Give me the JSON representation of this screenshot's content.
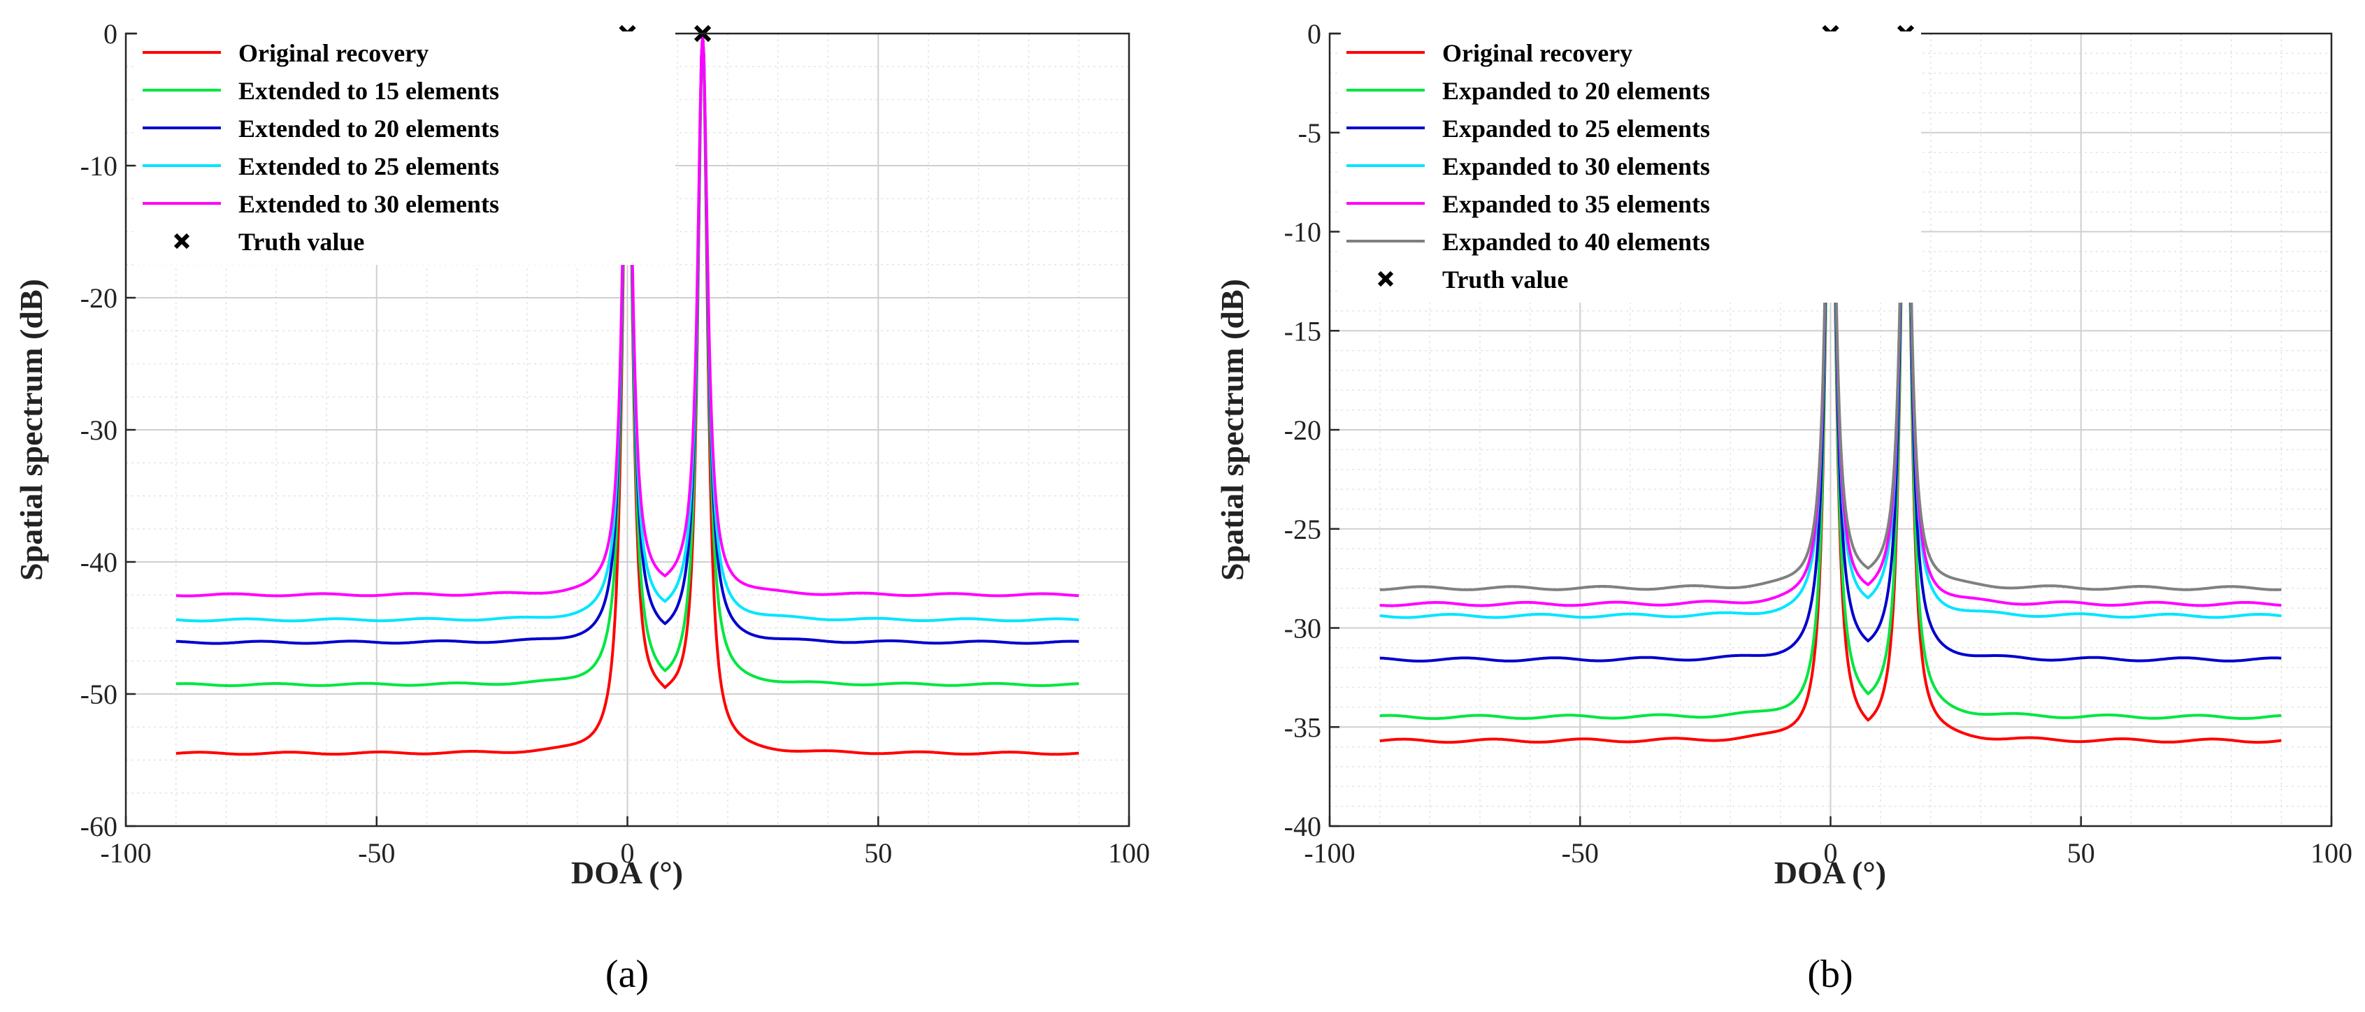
{
  "chart_data": [
    {
      "type": "line",
      "panel_label": "(a)",
      "xlabel": "DOA (°)",
      "ylabel": "Spatial spectrum (dB)",
      "xlim": [
        -100,
        100
      ],
      "ylim": [
        -60,
        0
      ],
      "xticks": [
        -100,
        -50,
        0,
        50,
        100
      ],
      "yticks": [
        -60,
        -50,
        -40,
        -30,
        -20,
        -10,
        0
      ],
      "grid": true,
      "minor_grid": true,
      "legend_position": "top-left",
      "peaks_deg": [
        0,
        15
      ],
      "series": [
        {
          "name": "Original recovery",
          "color": "#ff0000",
          "floor": -54.5,
          "dip": -51.5
        },
        {
          "name": "Extended to 15 elements",
          "color": "#00e640",
          "floor": -49.3,
          "dip": -49.4
        },
        {
          "name": "Extended to 20 elements",
          "color": "#0000cc",
          "floor": -46.1,
          "dip": -45.8
        },
        {
          "name": "Extended to 25 elements",
          "color": "#00e5ff",
          "floor": -44.4,
          "dip": -44.1
        },
        {
          "name": "Extended to 30 elements",
          "color": "#ff00ff",
          "floor": -42.5,
          "dip": -42.2
        }
      ],
      "truth": {
        "name": "Truth value",
        "x": [
          0,
          15
        ],
        "y": [
          0,
          0
        ]
      }
    },
    {
      "type": "line",
      "panel_label": "(b)",
      "xlabel": "DOA (°)",
      "ylabel": "Spatial spectrum (dB)",
      "xlim": [
        -100,
        100
      ],
      "ylim": [
        -40,
        0
      ],
      "xticks": [
        -100,
        -50,
        0,
        50,
        100
      ],
      "yticks": [
        -40,
        -35,
        -30,
        -25,
        -20,
        -15,
        -10,
        -5,
        0
      ],
      "grid": true,
      "minor_grid": true,
      "legend_position": "top-left",
      "peaks_deg": [
        0,
        15
      ],
      "series": [
        {
          "name": "Original recovery",
          "color": "#ff0000",
          "floor": -35.7,
          "dip": -35.6
        },
        {
          "name": "Expanded to 20 elements",
          "color": "#00e640",
          "floor": -34.5,
          "dip": -34.2
        },
        {
          "name": "Expanded to 25 elements",
          "color": "#0000cc",
          "floor": -31.6,
          "dip": -31.4
        },
        {
          "name": "Expanded to 30 elements",
          "color": "#00e5ff",
          "floor": -29.4,
          "dip": -29.2
        },
        {
          "name": "Expanded to 35 elements",
          "color": "#ff00ff",
          "floor": -28.8,
          "dip": -28.6
        },
        {
          "name": "Expanded to 40 elements",
          "color": "#808080",
          "floor": -28.0,
          "dip": -27.8
        }
      ],
      "truth": {
        "name": "Truth value",
        "x": [
          0,
          15
        ],
        "y": [
          0,
          0
        ]
      }
    }
  ]
}
